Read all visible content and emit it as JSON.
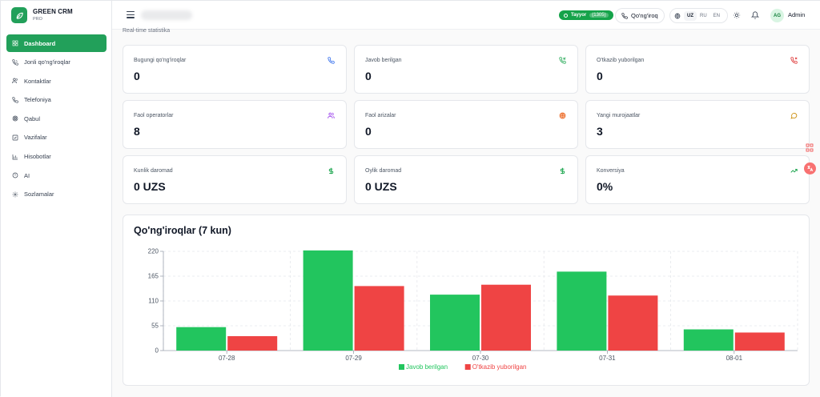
{
  "brand": {
    "name": "GREEN CRM",
    "sub": "PRO"
  },
  "sidebar": {
    "items": [
      {
        "label": "Dashboard",
        "icon": "grid-icon",
        "active": true
      },
      {
        "label": "Jonli qo'ng'iroqlar",
        "icon": "phone-call-icon"
      },
      {
        "label": "Kontaktlar",
        "icon": "users-icon"
      },
      {
        "label": "Telefoniya",
        "icon": "phone-icon"
      },
      {
        "label": "Qabul",
        "icon": "target-icon"
      },
      {
        "label": "Vazifalar",
        "icon": "checkbox-icon"
      },
      {
        "label": "Hisobotlar",
        "icon": "bar-chart-icon"
      },
      {
        "label": "AI",
        "icon": "info-circle-icon"
      },
      {
        "label": "Sozlamalar",
        "icon": "gear-icon"
      }
    ]
  },
  "header": {
    "status_label": "Tayyor",
    "status_ext": "(1305)",
    "call_label": "Qo'ng'iroq",
    "languages": [
      "UZ",
      "RU",
      "EN"
    ],
    "active_language": "UZ",
    "avatar_initials": "AG",
    "user_name": "Admin"
  },
  "content": {
    "subtitle": "Real-time statistika",
    "cards": [
      {
        "label": "Bugungi qo'ng'iroqlar",
        "value": "0",
        "icon": "phone-icon",
        "color": "#2563eb"
      },
      {
        "label": "Javob berilgan",
        "value": "0",
        "icon": "phone-incoming-icon",
        "color": "#16a34a"
      },
      {
        "label": "O'tkazib yuborilgan",
        "value": "0",
        "icon": "phone-missed-icon",
        "color": "#dc2626"
      },
      {
        "label": "Faol operatorlar",
        "value": "8",
        "icon": "users-icon",
        "color": "#9333ea"
      },
      {
        "label": "Faol arizalar",
        "value": "0",
        "icon": "target-icon",
        "color": "#ea580c"
      },
      {
        "label": "Yangi murojaatlar",
        "value": "3",
        "icon": "message-circle-icon",
        "color": "#ca8a04"
      },
      {
        "label": "Kunlik daromad",
        "value": "0 UZS",
        "icon": "dollar-icon",
        "color": "#16a34a"
      },
      {
        "label": "Oylik daromad",
        "value": "0 UZS",
        "icon": "dollar-icon",
        "color": "#16a34a"
      },
      {
        "label": "Konversiya",
        "value": "0%",
        "icon": "trending-up-icon",
        "color": "#16a34a"
      }
    ]
  },
  "chart_data": {
    "type": "bar",
    "title": "Qo'ng'iroqlar (7 kun)",
    "categories": [
      "07-28",
      "07-29",
      "07-30",
      "07-31",
      "08-01"
    ],
    "series": [
      {
        "name": "Javob berilgan",
        "values": [
          52,
          222,
          124,
          175,
          47
        ],
        "color": "#22c55e"
      },
      {
        "name": "O'tkazib yuborilgan",
        "values": [
          32,
          143,
          146,
          122,
          40
        ],
        "color": "#ef4444"
      }
    ],
    "yticks": [
      0,
      55,
      110,
      165,
      220
    ],
    "ylim": [
      0,
      220
    ],
    "grid": true,
    "legend": "bottom"
  }
}
